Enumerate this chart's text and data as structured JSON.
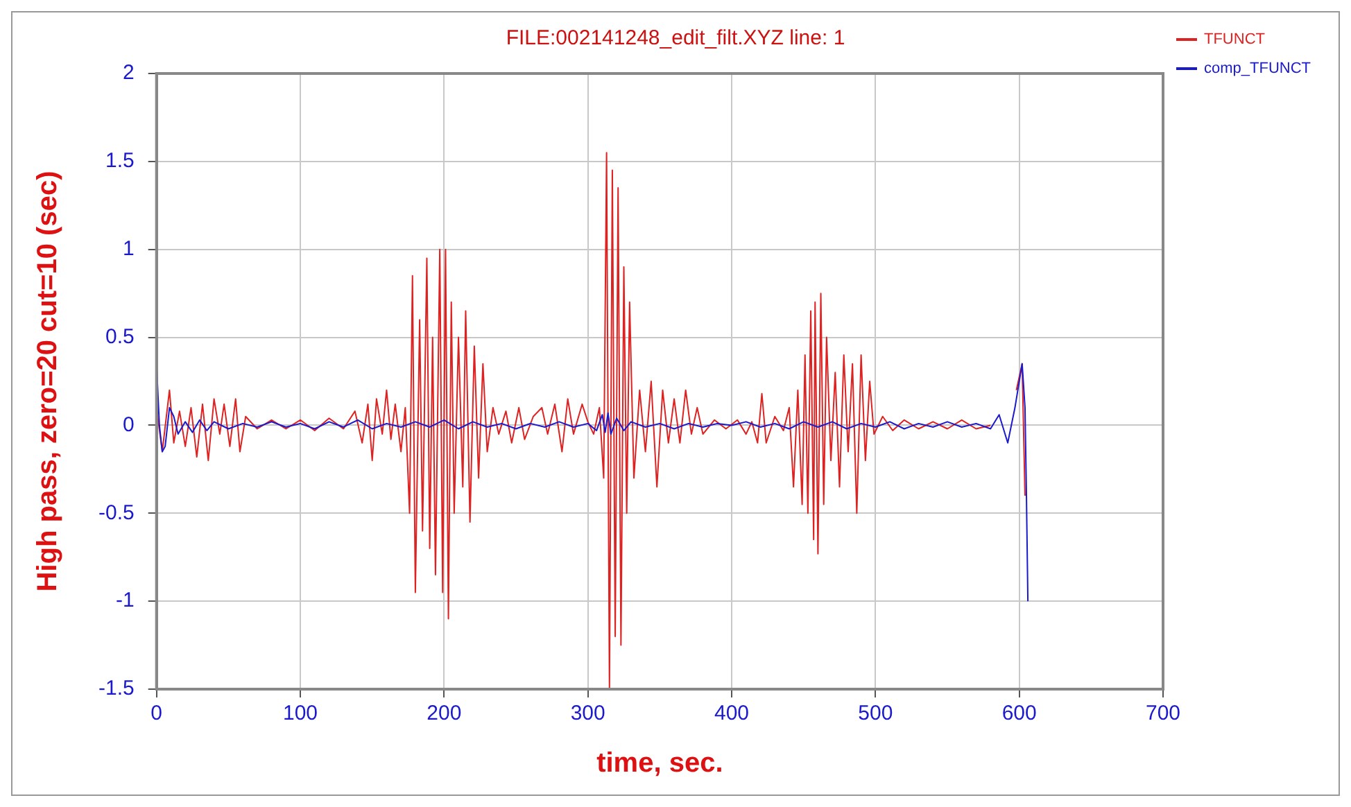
{
  "chart_data": {
    "type": "line",
    "title": "FILE:002141248_edit_filt.XYZ line: 1",
    "xlabel": "time, sec.",
    "ylabel": "High pass, zero=20 cut=10 (sec)",
    "xlim": [
      0,
      700
    ],
    "xticks": [
      0,
      100,
      200,
      300,
      400,
      500,
      600,
      700
    ],
    "ylim": [
      -1.5,
      2
    ],
    "yticks": [
      -1.5,
      -1,
      -0.5,
      0,
      0.5,
      1,
      1.5,
      2
    ],
    "grid": true,
    "legend": "top right",
    "marker": "none",
    "line_style": "solid",
    "series": [
      {
        "name": "TFUNCT",
        "color": "#dd2222",
        "x": [
          0,
          4,
          9,
          12,
          16,
          20,
          24,
          28,
          32,
          36,
          40,
          44,
          47,
          51,
          55,
          58,
          62,
          70,
          80,
          90,
          100,
          110,
          120,
          130,
          138,
          143,
          147,
          150,
          153,
          157,
          160,
          163,
          166,
          170,
          173,
          176,
          178,
          180,
          183,
          185,
          188,
          190,
          192,
          194,
          197,
          199,
          201,
          203,
          205,
          207,
          210,
          213,
          215,
          218,
          221,
          224,
          227,
          230,
          234,
          238,
          243,
          247,
          252,
          256,
          262,
          268,
          272,
          277,
          282,
          286,
          290,
          296,
          300,
          304,
          308,
          311,
          313,
          315,
          317,
          319,
          321,
          323,
          325,
          327,
          329,
          332,
          336,
          340,
          344,
          348,
          352,
          356,
          360,
          364,
          368,
          372,
          376,
          380,
          388,
          396,
          404,
          410,
          414,
          418,
          421,
          424,
          430,
          436,
          440,
          443,
          446,
          449,
          451,
          453,
          455,
          457,
          458,
          460,
          462,
          464,
          466,
          469,
          472,
          475,
          478,
          481,
          484,
          487,
          490,
          493,
          496,
          499,
          505,
          512,
          520,
          530,
          540,
          550,
          560,
          570,
          580,
          586,
          592,
          598,
          602,
          604
        ],
        "values": [
          0.1,
          -0.15,
          0.2,
          -0.1,
          0.08,
          -0.12,
          0.1,
          -0.18,
          0.12,
          -0.2,
          0.15,
          -0.05,
          0.12,
          -0.12,
          0.15,
          -0.15,
          0.05,
          -0.02,
          0.03,
          -0.02,
          0.03,
          -0.03,
          0.04,
          -0.02,
          0.08,
          -0.1,
          0.12,
          -0.2,
          0.15,
          -0.05,
          0.2,
          -0.08,
          0.12,
          -0.15,
          0.1,
          -0.5,
          0.85,
          -0.95,
          0.6,
          -0.6,
          0.95,
          -0.7,
          0.5,
          -0.85,
          1.0,
          -0.95,
          1.0,
          -1.1,
          0.7,
          -0.5,
          0.5,
          -0.35,
          0.65,
          -0.55,
          0.45,
          -0.3,
          0.35,
          -0.15,
          0.1,
          -0.05,
          0.08,
          -0.1,
          0.1,
          -0.08,
          0.05,
          0.1,
          -0.05,
          0.12,
          -0.15,
          0.15,
          -0.05,
          0.12,
          0.02,
          -0.05,
          0.1,
          -0.3,
          1.55,
          -1.5,
          1.45,
          -1.2,
          1.35,
          -1.25,
          0.9,
          -0.5,
          0.7,
          -0.3,
          0.2,
          -0.15,
          0.25,
          -0.35,
          0.2,
          -0.1,
          0.15,
          -0.1,
          0.2,
          -0.05,
          0.1,
          -0.05,
          0.03,
          -0.02,
          0.03,
          -0.05,
          0.02,
          -0.1,
          0.18,
          -0.1,
          0.05,
          -0.03,
          0.1,
          -0.35,
          0.2,
          -0.45,
          0.4,
          -0.5,
          0.65,
          -0.65,
          0.7,
          -0.73,
          0.75,
          -0.45,
          0.5,
          -0.2,
          0.3,
          -0.35,
          0.4,
          -0.15,
          0.35,
          -0.5,
          0.4,
          -0.2,
          0.25,
          -0.05,
          0.05,
          -0.03,
          0.03,
          -0.02,
          0.02,
          -0.02,
          0.03,
          -0.02,
          0.0,
          null,
          null,
          0.2,
          0.35,
          -0.4
        ]
      },
      {
        "name": "comp_TFUNCT",
        "color": "#1a1acc",
        "x": [
          0,
          2,
          4,
          6,
          9,
          12,
          15,
          20,
          25,
          30,
          35,
          40,
          50,
          60,
          70,
          80,
          90,
          100,
          110,
          120,
          130,
          140,
          150,
          160,
          170,
          180,
          190,
          200,
          210,
          220,
          230,
          240,
          250,
          260,
          270,
          280,
          290,
          300,
          306,
          310,
          312,
          314,
          316,
          320,
          325,
          330,
          340,
          350,
          360,
          370,
          380,
          390,
          400,
          410,
          420,
          430,
          440,
          450,
          460,
          470,
          480,
          490,
          500,
          510,
          520,
          530,
          540,
          550,
          560,
          570,
          580,
          586,
          592,
          597,
          602,
          604,
          605,
          606
        ],
        "values": [
          0.35,
          0.0,
          -0.15,
          -0.12,
          0.1,
          0.05,
          -0.05,
          0.02,
          -0.04,
          0.03,
          -0.03,
          0.02,
          -0.02,
          0.01,
          -0.01,
          0.02,
          -0.01,
          0.01,
          -0.02,
          0.02,
          -0.01,
          0.03,
          -0.02,
          0.01,
          -0.01,
          0.02,
          -0.01,
          0.03,
          -0.02,
          0.02,
          -0.01,
          0.01,
          -0.02,
          0.01,
          -0.01,
          0.02,
          -0.01,
          0.01,
          -0.03,
          0.06,
          -0.04,
          0.07,
          -0.05,
          0.04,
          -0.03,
          0.02,
          -0.01,
          0.01,
          -0.02,
          0.01,
          -0.01,
          0.01,
          0.0,
          0.02,
          -0.01,
          0.01,
          -0.02,
          0.02,
          -0.01,
          0.02,
          -0.02,
          0.01,
          -0.01,
          0.02,
          -0.02,
          0.01,
          -0.01,
          0.02,
          -0.01,
          0.01,
          -0.02,
          0.06,
          -0.1,
          0.1,
          0.35,
          0.1,
          -0.4,
          -1.0
        ]
      }
    ]
  }
}
